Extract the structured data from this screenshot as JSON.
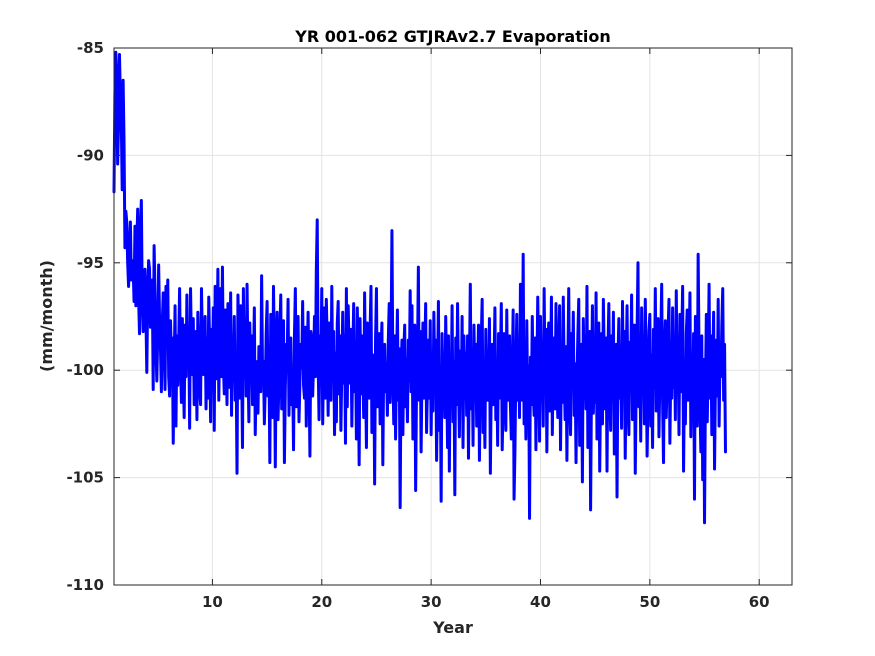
{
  "chart_data": {
    "type": "line",
    "title": "YR 001-062 GTJRAv2.7 Evaporation",
    "xlabel": "Year",
    "ylabel": "(mm/month)",
    "xlim": [
      1,
      63
    ],
    "ylim": [
      -110,
      -85
    ],
    "xticks": [
      10,
      20,
      30,
      40,
      50,
      60
    ],
    "xtick_labels": [
      "10",
      "20",
      "30",
      "40",
      "50",
      "60"
    ],
    "yticks": [
      -110,
      -105,
      -100,
      -95,
      -90,
      -85
    ],
    "ytick_labels": [
      "-110",
      "-105",
      "-100",
      "-95",
      "-90",
      "-85"
    ],
    "grid": true,
    "legend": "none",
    "series": [
      {
        "color": "#0000ff",
        "x_start": 1.0,
        "x_step": 0.0833333,
        "values": [
          -91.7,
          -87.1,
          -85.2,
          -86.3,
          -90.4,
          -88.5,
          -85.3,
          -87.3,
          -88.4,
          -91.6,
          -86.5,
          -89.3,
          -94.3,
          -92.6,
          -93.1,
          -95.0,
          -96.1,
          -94.2,
          -93.1,
          -95.8,
          -94.9,
          -95.2,
          -96.8,
          -93.3,
          -97.0,
          -94.2,
          -92.5,
          -96.7,
          -98.3,
          -93.4,
          -92.1,
          -96.7,
          -98.2,
          -96.0,
          -95.3,
          -97.4,
          -100.1,
          -96.4,
          -94.9,
          -95.3,
          -98.0,
          -96.2,
          -95.8,
          -100.9,
          -94.2,
          -96.4,
          -98.9,
          -100.5,
          -98.3,
          -95.1,
          -97.6,
          -99.0,
          -101.0,
          -97.8,
          -96.4,
          -98.4,
          -100.9,
          -96.1,
          -98.5,
          -95.8,
          -100.3,
          -101.2,
          -97.7,
          -99.3,
          -98.5,
          -103.4,
          -99.9,
          -97.0,
          -102.6,
          -98.4,
          -100.7,
          -98.7,
          -96.2,
          -99.8,
          -101.5,
          -97.6,
          -100.1,
          -102.2,
          -97.9,
          -100.3,
          -96.5,
          -99.8,
          -98.1,
          -102.7,
          -96.2,
          -98.9,
          -100.2,
          -97.6,
          -101.6,
          -99.4,
          -98.2,
          -102.3,
          -97.3,
          -99.3,
          -100.9,
          -101.6,
          -96.2,
          -98.6,
          -100.2,
          -99.8,
          -97.5,
          -101.8,
          -98.5,
          -101.3,
          -96.6,
          -99.0,
          -102.4,
          -98.1,
          -100.0,
          -97.1,
          -102.8,
          -96.1,
          -100.4,
          -99.1,
          -95.3,
          -101.4,
          -98.1,
          -96.2,
          -100.3,
          -95.2,
          -99.7,
          -101.1,
          -97.2,
          -99.2,
          -101.6,
          -96.9,
          -98.5,
          -100.8,
          -96.4,
          -102.1,
          -98.6,
          -100.2,
          -97.5,
          -101.4,
          -99.8,
          -104.8,
          -96.5,
          -98.3,
          -101.3,
          -97.0,
          -99.5,
          -103.6,
          -96.2,
          -100.1,
          -97.9,
          -101.2,
          -96.0,
          -99.6,
          -102.4,
          -97.8,
          -100.0,
          -98.4,
          -101.6,
          -99.7,
          -97.1,
          -103.0,
          -100.3,
          -99.6,
          -102.0,
          -98.9,
          -99.4,
          -101.0,
          -95.6,
          -100.1,
          -99.6,
          -102.5,
          -100.8,
          -98.3,
          -96.8,
          -101.2,
          -99.4,
          -104.3,
          -97.4,
          -100.2,
          -102.2,
          -96.1,
          -99.1,
          -104.5,
          -99.2,
          -97.3,
          -102.3,
          -100.6,
          -98.3,
          -96.5,
          -101.8,
          -99.3,
          -97.7,
          -104.3,
          -100.8,
          -98.8,
          -99.5,
          -96.7,
          -102.1,
          -99.3,
          -98.5,
          -101.6,
          -100.2,
          -103.7,
          -98.4,
          -96.2,
          -101.7,
          -99.3,
          -97.5,
          -102.4,
          -100.6,
          -98.8,
          -99.9,
          -96.8,
          -100.7,
          -101.3,
          -98.0,
          -102.6,
          -99.4,
          -97.3,
          -100.4,
          -104.0,
          -98.2,
          -98.6,
          -101.2,
          -99.7,
          -97.5,
          -100.3,
          -95.4,
          -93.0,
          -99.6,
          -102.3,
          -98.4,
          -100.1,
          -96.2,
          -102.5,
          -99.4,
          -97.1,
          -101.3,
          -96.7,
          -98.7,
          -102.1,
          -97.8,
          -99.8,
          -101.4,
          -96.1,
          -100.5,
          -98.2,
          -103.0,
          -99.2,
          -102.4,
          -97.8,
          -96.8,
          -101.1,
          -98.4,
          -102.8,
          -99.9,
          -97.3,
          -100.6,
          -98.4,
          -103.4,
          -96.2,
          -101.7,
          -97.0,
          -99.1,
          -100.6,
          -98.1,
          -102.6,
          -99.4,
          -96.9,
          -101.0,
          -98.8,
          -103.2,
          -97.1,
          -99.7,
          -104.4,
          -97.6,
          -101.1,
          -98.4,
          -99.9,
          -102.2,
          -96.4,
          -100.1,
          -103.6,
          -97.8,
          -99.8,
          -101.3,
          -98.2,
          -96.1,
          -102.9,
          -101.4,
          -99.3,
          -105.3,
          -98.6,
          -96.2,
          -101.7,
          -100.3,
          -98.3,
          -102.5,
          -99.1,
          -97.8,
          -104.4,
          -99.5,
          -98.8,
          -101.0,
          -99.9,
          -102.1,
          -98.6,
          -96.9,
          -101.5,
          -99.0,
          -93.5,
          -100.0,
          -102.5,
          -98.4,
          -103.2,
          -99.7,
          -97.2,
          -101.4,
          -99.0,
          -106.4,
          -100.1,
          -98.6,
          -103.0,
          -99.1,
          -97.9,
          -101.7,
          -99.5,
          -102.4,
          -98.6,
          -100.5,
          -96.3,
          -101.0,
          -97.0,
          -103.2,
          -99.5,
          -97.9,
          -105.6,
          -100.6,
          -99.4,
          -95.2,
          -101.4,
          -98.2,
          -103.8,
          -100.1,
          -97.8,
          -101.3,
          -99.5,
          -96.9,
          -102.9,
          -100.8,
          -98.6,
          -101.3,
          -97.7,
          -103.0,
          -99.4,
          -101.9,
          -97.3,
          -100.2,
          -98.6,
          -104.2,
          -100.4,
          -96.8,
          -102.8,
          -99.8,
          -106.1,
          -98.3,
          -101.1,
          -99.6,
          -102.2,
          -97.5,
          -100.1,
          -103.6,
          -98.4,
          -104.7,
          -99.3,
          -101.0,
          -97.0,
          -102.4,
          -99.6,
          -105.8,
          -98.5,
          -101.6,
          -96.9,
          -100.3,
          -103.1,
          -99.1,
          -101.6,
          -97.5,
          -103.6,
          -98.4,
          -100.9,
          -99.2,
          -102.1,
          -98.4,
          -104.1,
          -100.0,
          -96.0,
          -101.8,
          -99.3,
          -103.5,
          -97.9,
          -100.9,
          -98.8,
          -102.6,
          -99.9,
          -97.9,
          -104.2,
          -100.5,
          -98.6,
          -96.7,
          -102.9,
          -99.8,
          -103.6,
          -98.1,
          -101.4,
          -99.7,
          -101.4,
          -97.6,
          -104.8,
          -100.6,
          -98.8,
          -101.6,
          -99.9,
          -97.1,
          -102.3,
          -99.9,
          -103.5,
          -98.3,
          -101.3,
          -99.6,
          -96.9,
          -103.7,
          -101.4,
          -98.3,
          -100.6,
          -102.8,
          -97.2,
          -101.4,
          -99.1,
          -98.4,
          -101.6,
          -103.2,
          -100.2,
          -97.2,
          -106.0,
          -103.7,
          -99.8,
          -97.4,
          -101.4,
          -98.7,
          -102.2,
          -96.0,
          -99.6,
          -101.4,
          -94.6,
          -102.5,
          -99.9,
          -103.2,
          -97.7,
          -101.9,
          -99.8,
          -106.9,
          -99.4,
          -101.6,
          -97.5,
          -100.8,
          -102.1,
          -98.5,
          -103.7,
          -100.2,
          -96.6,
          -99.1,
          -103.3,
          -97.5,
          -101.2,
          -99.4,
          -102.6,
          -96.2,
          -100.3,
          -98.1,
          -103.8,
          -99.6,
          -97.8,
          -101.9,
          -100.4,
          -96.6,
          -103.0,
          -99.3,
          -98.5,
          -101.8,
          -96.9,
          -100.6,
          -102.2,
          -99.1,
          -97.0,
          -103.7,
          -99.4,
          -101.5,
          -96.6,
          -100.0,
          -102.3,
          -98.9,
          -104.2,
          -99.8,
          -96.2,
          -101.2,
          -103.0,
          -98.3,
          -100.6,
          -97.3,
          -102.1,
          -99.7,
          -104.3,
          -100.5,
          -98.4,
          -96.7,
          -103.5,
          -101.0,
          -98.8,
          -105.2,
          -97.6,
          -100.3,
          -99.3,
          -101.8,
          -96.1,
          -103.6,
          -99.8,
          -98.2,
          -106.5,
          -100.4,
          -97.0,
          -102.0,
          -99.7,
          -101.5,
          -96.4,
          -103.2,
          -99.3,
          -97.8,
          -104.7,
          -100.6,
          -98.3,
          -102.5,
          -96.7,
          -99.5,
          -101.8,
          -98.5,
          -104.7,
          -99.2,
          -96.9,
          -100.6,
          -102.8,
          -98.4,
          -101.1,
          -97.3,
          -103.9,
          -100.4,
          -98.8,
          -105.9,
          -99.5,
          -97.6,
          -101.3,
          -99.9,
          -102.7,
          -96.8,
          -100.9,
          -98.2,
          -104.1,
          -99.9,
          -97.0,
          -101.5,
          -103.0,
          -98.7,
          -100.3,
          -96.5,
          -102.3,
          -99.7,
          -97.9,
          -104.8,
          -100.8,
          -98.2,
          -95.0,
          -101.7,
          -99.4,
          -103.3,
          -97.1,
          -100.4,
          -98.8,
          -102.5,
          -96.7,
          -99.8,
          -104.0,
          -101.2,
          -98.2,
          -97.4,
          -102.6,
          -99.3,
          -103.6,
          -98.1,
          -100.8,
          -96.2,
          -101.9,
          -99.6,
          -97.6,
          -103.1,
          -100.3,
          -98.5,
          -96.0,
          -101.5,
          -104.3,
          -99.1,
          -97.7,
          -102.2,
          -100.4,
          -98.2,
          -96.7,
          -103.4,
          -99.9,
          -101.3,
          -97.1,
          -100.8,
          -98.6,
          -102.3,
          -96.3,
          -100.5,
          -99.2,
          -103.0,
          -97.4,
          -101.0,
          -98.8,
          -96.1,
          -104.7,
          -100.2,
          -102.5,
          -98.3,
          -97.2,
          -101.4,
          -99.3,
          -96.4,
          -103.1,
          -99.8,
          -101.8,
          -98.3,
          -106.0,
          -97.5,
          -100.0,
          -102.6,
          -94.6,
          -99.2,
          -101.6,
          -103.8,
          -98.4,
          -105.1,
          -99.5,
          -107.1,
          -100.9,
          -97.4,
          -102.4,
          -99.8,
          -96.0,
          -101.3,
          -98.4,
          -103.0,
          -99.7,
          -97.3,
          -104.6,
          -100.5,
          -98.6,
          -101.2,
          -96.7,
          -102.6,
          -99.4,
          -100.3,
          -97.9,
          -96.2,
          -101.4,
          -98.8,
          -103.8
        ]
      }
    ]
  }
}
